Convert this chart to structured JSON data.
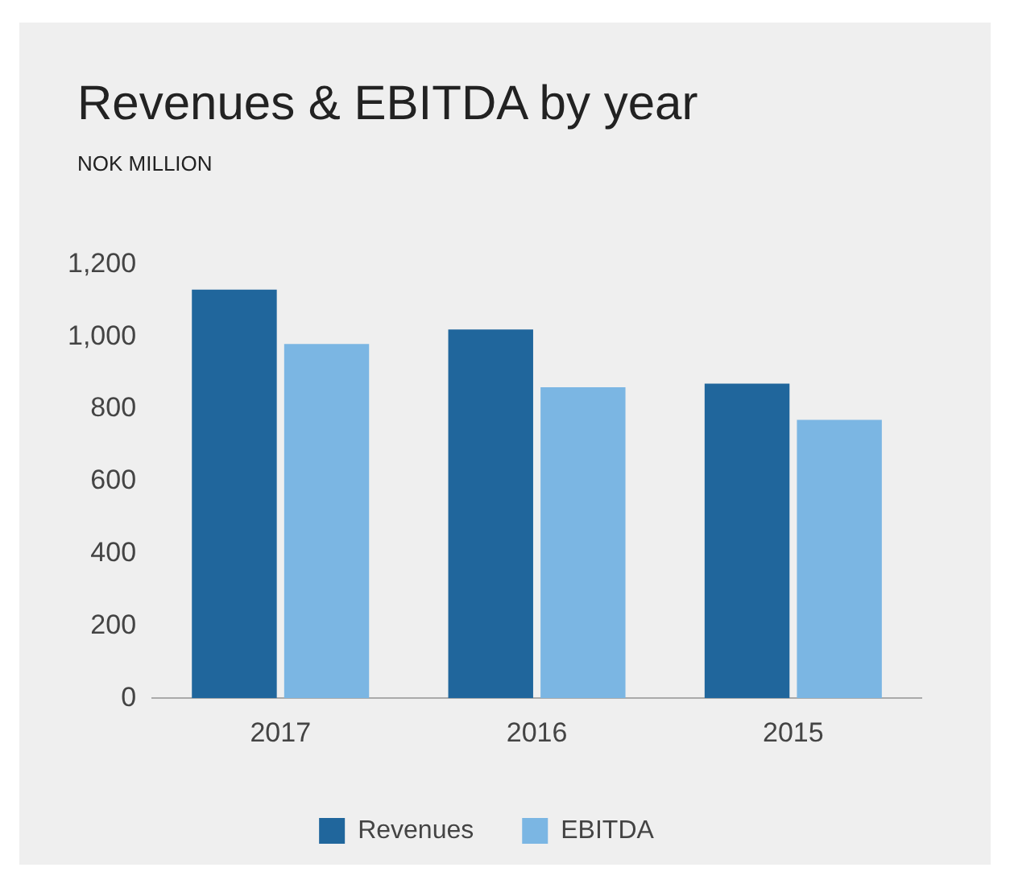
{
  "chart_data": {
    "type": "bar",
    "title": "Revenues & EBITDA by year",
    "subtitle": "NOK MILLION",
    "categories": [
      "2017",
      "2016",
      "2015"
    ],
    "series": [
      {
        "name": "Revenues",
        "color": "#20669c",
        "values": [
          1130,
          1020,
          870
        ]
      },
      {
        "name": "EBITDA",
        "color": "#7bb6e3",
        "values": [
          980,
          860,
          770
        ]
      }
    ],
    "ylim": [
      0,
      1200
    ],
    "yticks": [
      0,
      200,
      400,
      600,
      800,
      {
        "value": 1000,
        "label": "1,000"
      },
      {
        "value": 1200,
        "label": "1,200"
      }
    ],
    "grid": false,
    "legend": "bottom"
  }
}
